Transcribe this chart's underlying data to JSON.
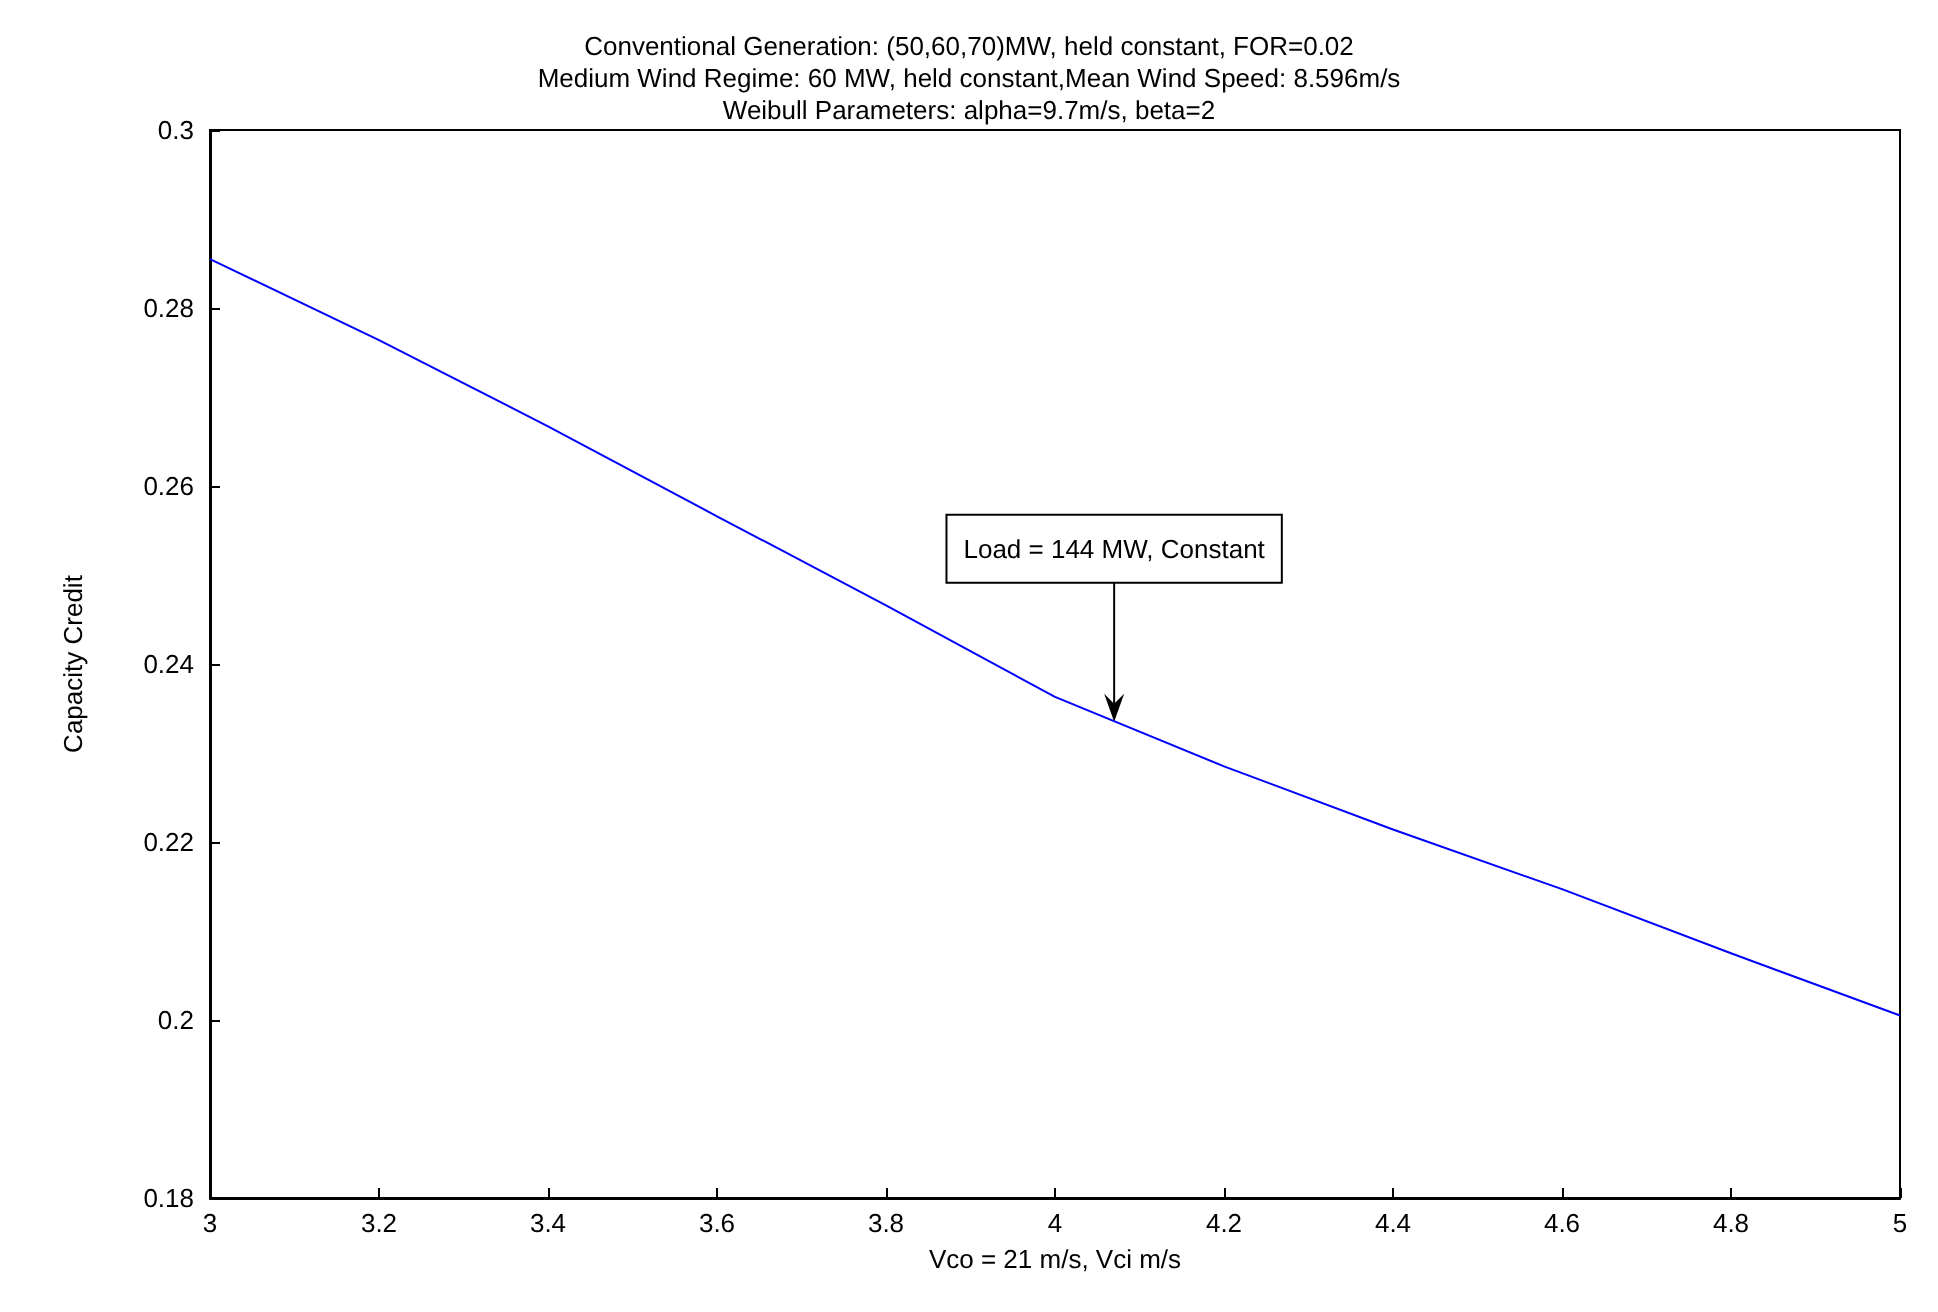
{
  "chart_data": {
    "type": "line",
    "title": "Conventional Generation: (50,60,70)MW, held constant, FOR=0.02\nMedium Wind Regime: 60 MW, held constant,Mean Wind Speed: 8.596m/s\nWeibull Parameters: alpha=9.7m/s, beta=2",
    "xlabel": "Vco = 21 m/s, Vci m/s",
    "ylabel": "Capacity Credit",
    "x": [
      3,
      3.2,
      3.4,
      3.6,
      3.8,
      4,
      4.2,
      4.4,
      4.6,
      4.8,
      5
    ],
    "series": [
      {
        "color": "#0000ff",
        "values": [
          0.2855,
          0.2764,
          0.2667,
          0.2566,
          0.2466,
          0.2363,
          0.2285,
          0.2214,
          0.2147,
          0.2075,
          0.2005
        ]
      }
    ],
    "xlim": [
      3,
      5
    ],
    "xticks": [
      3,
      3.2,
      3.4,
      3.6,
      3.8,
      4,
      4.2,
      4.4,
      4.6,
      4.8,
      5
    ],
    "ylim": [
      0.18,
      0.3
    ],
    "yticks": [
      0.18,
      0.2,
      0.22,
      0.24,
      0.26,
      0.28,
      0.3
    ],
    "annotations": [
      {
        "text": "Load = 144 MW, Constant",
        "x": 4.07,
        "y": 0.2335
      }
    ],
    "grid": false,
    "marker": "none",
    "line_style": "solid"
  }
}
